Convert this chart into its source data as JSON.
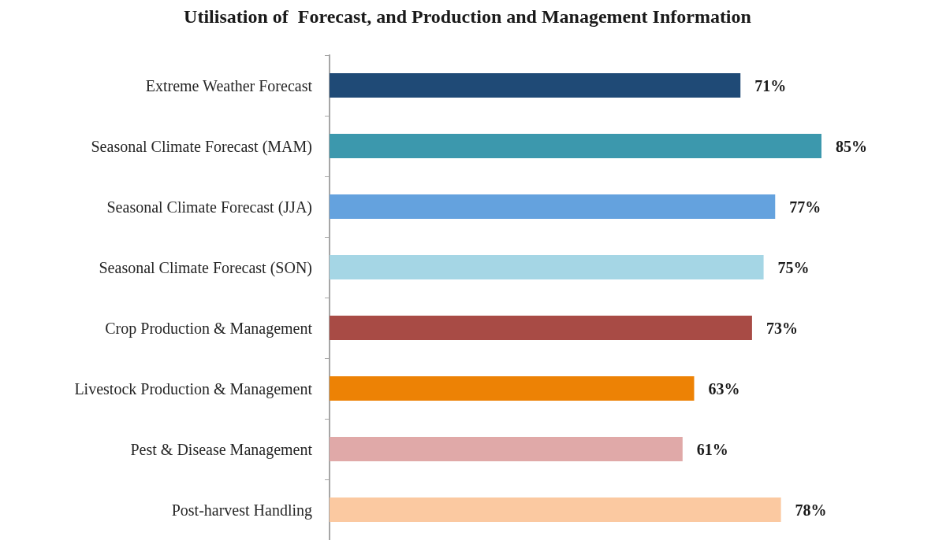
{
  "chart_data": {
    "type": "bar",
    "orientation": "horizontal",
    "title": "Utilisation of  Forecast, and Production and Management Information",
    "categories": [
      "Extreme Weather Forecast",
      "Seasonal Climate Forecast (MAM)",
      "Seasonal Climate Forecast (JJA)",
      "Seasonal Climate Forecast (SON)",
      "Crop Production & Management",
      "Livestock Production & Management",
      "Pest & Disease Management",
      "Post-harvest Handling"
    ],
    "values": [
      71,
      85,
      77,
      75,
      73,
      63,
      61,
      78
    ],
    "value_labels": [
      "71%",
      "85%",
      "77%",
      "75%",
      "73%",
      "63%",
      "61%",
      "78%"
    ],
    "colors": [
      "#1f4a76",
      "#3c98ad",
      "#64a2de",
      "#a5d6e5",
      "#a84b45",
      "#ed8205",
      "#e0a9a8",
      "#fbc9a1"
    ],
    "grid": false
  }
}
